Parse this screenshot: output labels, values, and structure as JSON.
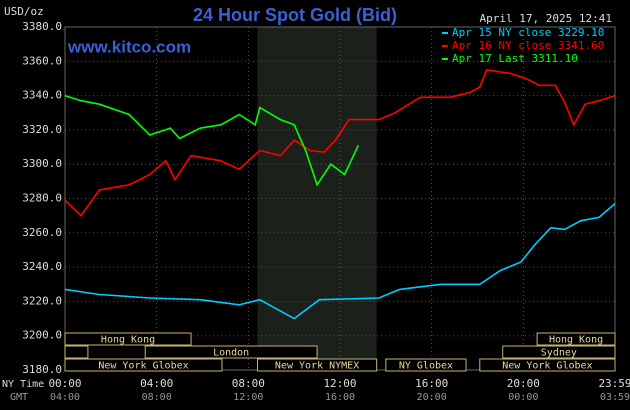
{
  "chart_data": {
    "type": "line",
    "title": "24 Hour Spot Gold (Bid)",
    "ylabel": "USD/oz",
    "source": "www.kitco.com",
    "timestamp": "April 17, 2025 12:41",
    "xlabel": "NY Time",
    "x2label": "GMT",
    "xlim": [
      0,
      24
    ],
    "ylim": [
      3180,
      3380
    ],
    "xticks": [
      {
        "value": 0,
        "label": "00:00"
      },
      {
        "value": 4,
        "label": "04:00"
      },
      {
        "value": 8,
        "label": "08:00"
      },
      {
        "value": 12,
        "label": "12:00"
      },
      {
        "value": 16,
        "label": "16:00"
      },
      {
        "value": 20,
        "label": "20:00"
      },
      {
        "value": 24,
        "label": "23:59"
      }
    ],
    "x2ticks": [
      {
        "value": 0,
        "label": "04:00"
      },
      {
        "value": 4,
        "label": "08:00"
      },
      {
        "value": 8,
        "label": "12:00"
      },
      {
        "value": 12,
        "label": "16:00"
      },
      {
        "value": 16,
        "label": "20:00"
      },
      {
        "value": 20,
        "label": "00:00"
      },
      {
        "value": 24,
        "label": "03:59"
      }
    ],
    "yticks": [
      {
        "value": 3180,
        "label": "3180.0"
      },
      {
        "value": 3200,
        "label": "3200.0"
      },
      {
        "value": 3220,
        "label": "3220.0"
      },
      {
        "value": 3240,
        "label": "3240.0"
      },
      {
        "value": 3260,
        "label": "3260.0"
      },
      {
        "value": 3280,
        "label": "3280.0"
      },
      {
        "value": 3300,
        "label": "3300.0"
      },
      {
        "value": 3320,
        "label": "3320.0"
      },
      {
        "value": 3340,
        "label": "3340.0"
      },
      {
        "value": 3360,
        "label": "3360.0"
      },
      {
        "value": 3380,
        "label": "3380.0"
      }
    ],
    "grid": true,
    "shade": [
      8.4,
      13.6
    ],
    "sessions": [
      {
        "label": "Hong Kong",
        "start": 0,
        "end": 5.5,
        "row": 0
      },
      {
        "label": "Hong Kong",
        "start": 20.6,
        "end": 24,
        "row": 0
      },
      {
        "label": null,
        "start": 0,
        "end": 1,
        "row": 1
      },
      {
        "label": "London",
        "start": 3.5,
        "end": 11,
        "row": 1
      },
      {
        "label": "Sydney",
        "start": 19.1,
        "end": 24,
        "row": 1
      },
      {
        "label": "New York Globex",
        "start": 0,
        "end": 6.85,
        "row": 2
      },
      {
        "label": "New York NYMEX",
        "start": 8.4,
        "end": 13.6,
        "row": 2
      },
      {
        "label": "NY Globex",
        "start": 14,
        "end": 17.5,
        "row": 2
      },
      {
        "label": "New York Globex",
        "start": 18.1,
        "end": 24,
        "row": 2
      }
    ],
    "series": [
      {
        "name": "Apr 15 NY close 3229.10",
        "color": "#00ccff",
        "x": [
          0,
          1.5,
          3.7,
          5.9,
          7.6,
          8.5,
          10.0,
          11.1,
          13.7,
          14.6,
          16.4,
          18.1,
          19.0,
          19.9,
          20.5,
          21.2,
          21.8,
          22.5,
          23.3,
          24
        ],
        "values": [
          3227,
          3224,
          3222,
          3221,
          3218,
          3221,
          3210,
          3221,
          3222,
          3227,
          3230,
          3230,
          3238,
          3243,
          3253,
          3263,
          3262,
          3267,
          3269,
          3277
        ]
      },
      {
        "name": "Apr 16 NY close 3341.60",
        "color": "#ff0000",
        "x": [
          0,
          0.7,
          1.5,
          2.8,
          3.7,
          4.4,
          4.8,
          5.5,
          6.8,
          7.6,
          8.5,
          9.4,
          10.0,
          10.7,
          11.3,
          11.8,
          12.4,
          13.7,
          14.4,
          15.5,
          16.8,
          17.7,
          18.1,
          18.4,
          19.4,
          20.1,
          20.7,
          21.4,
          21.8,
          22.2,
          22.7,
          23.3,
          24
        ],
        "values": [
          3279,
          3270,
          3285,
          3288,
          3294,
          3302,
          3291,
          3305,
          3302,
          3297,
          3308,
          3305,
          3314,
          3308,
          3307,
          3314,
          3326,
          3326,
          3330,
          3339,
          3339,
          3342,
          3345,
          3355,
          3353,
          3350,
          3346,
          3346,
          3336,
          3323,
          3335,
          3337,
          3340
        ]
      },
      {
        "name": "Apr 17 Last 3311.10",
        "color": "#00ff00",
        "x": [
          0,
          0.7,
          1.5,
          2.8,
          3.7,
          4.6,
          5.0,
          5.9,
          6.8,
          7.6,
          8.3,
          8.5,
          9.4,
          10.0,
          10.5,
          11.0,
          11.6,
          12.2,
          12.8
        ],
        "values": [
          3340,
          3337,
          3335,
          3329,
          3317,
          3321,
          3315,
          3321,
          3323,
          3329,
          3323,
          3333,
          3326,
          3323,
          3308,
          3288,
          3300,
          3294,
          3311
        ]
      }
    ]
  }
}
